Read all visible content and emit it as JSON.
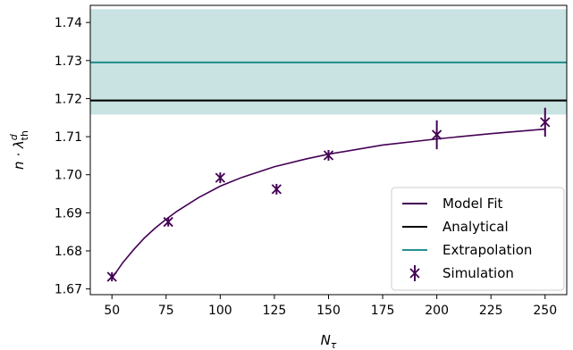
{
  "chart_data": {
    "type": "scatter",
    "xlim": [
      40,
      260
    ],
    "ylim": [
      1.6685,
      1.7445
    ],
    "x_ticks": [
      50,
      75,
      100,
      125,
      150,
      175,
      200,
      225,
      250
    ],
    "y_ticks": [
      1.67,
      1.68,
      1.69,
      1.7,
      1.71,
      1.72,
      1.73,
      1.74
    ],
    "y_tick_labels": [
      "1.67",
      "1.68",
      "1.69",
      "1.70",
      "1.71",
      "1.72",
      "1.73",
      "1.74"
    ],
    "xlabel": {
      "base": "N",
      "sub": "τ"
    },
    "ylabel": {
      "prefix": "n · λ",
      "sub": "th",
      "sup": "d"
    },
    "analytical": {
      "y": 1.7195,
      "color": "#000000"
    },
    "extrapolation": {
      "y": 1.7295,
      "band": [
        1.7158,
        1.7435
      ],
      "color": "#2a8f8f",
      "band_color": "#c9e3e3"
    },
    "simulation": {
      "color": "#440154",
      "points": [
        {
          "x": 50,
          "y": 1.6732,
          "err": 0.0012
        },
        {
          "x": 76,
          "y": 1.6876,
          "err": 0.0012
        },
        {
          "x": 100,
          "y": 1.6992,
          "err": 0.0014
        },
        {
          "x": 126,
          "y": 1.6962,
          "err": 0.0014
        },
        {
          "x": 150,
          "y": 1.7051,
          "err": 0.0014
        },
        {
          "x": 200,
          "y": 1.7105,
          "err": 0.0038
        },
        {
          "x": 250,
          "y": 1.7138,
          "err": 0.0038
        }
      ]
    },
    "model_fit": {
      "color": "#440154",
      "x": [
        50,
        55,
        60,
        65,
        70,
        75,
        80,
        90,
        100,
        110,
        125,
        140,
        150,
        175,
        200,
        225,
        250
      ],
      "y": [
        1.6728,
        1.6769,
        1.6803,
        1.6834,
        1.686,
        1.6883,
        1.6904,
        1.694,
        1.697,
        1.6993,
        1.7021,
        1.7042,
        1.7054,
        1.7078,
        1.7094,
        1.7108,
        1.712
      ]
    },
    "legend": {
      "position": "lower-right",
      "items": [
        {
          "label": "Model Fit",
          "kind": "line",
          "color": "#440154"
        },
        {
          "label": "Analytical",
          "kind": "line",
          "color": "#000000"
        },
        {
          "label": "Extrapolation",
          "kind": "line",
          "color": "#2a8f8f"
        },
        {
          "label": "Simulation",
          "kind": "marker",
          "color": "#440154"
        }
      ]
    }
  }
}
